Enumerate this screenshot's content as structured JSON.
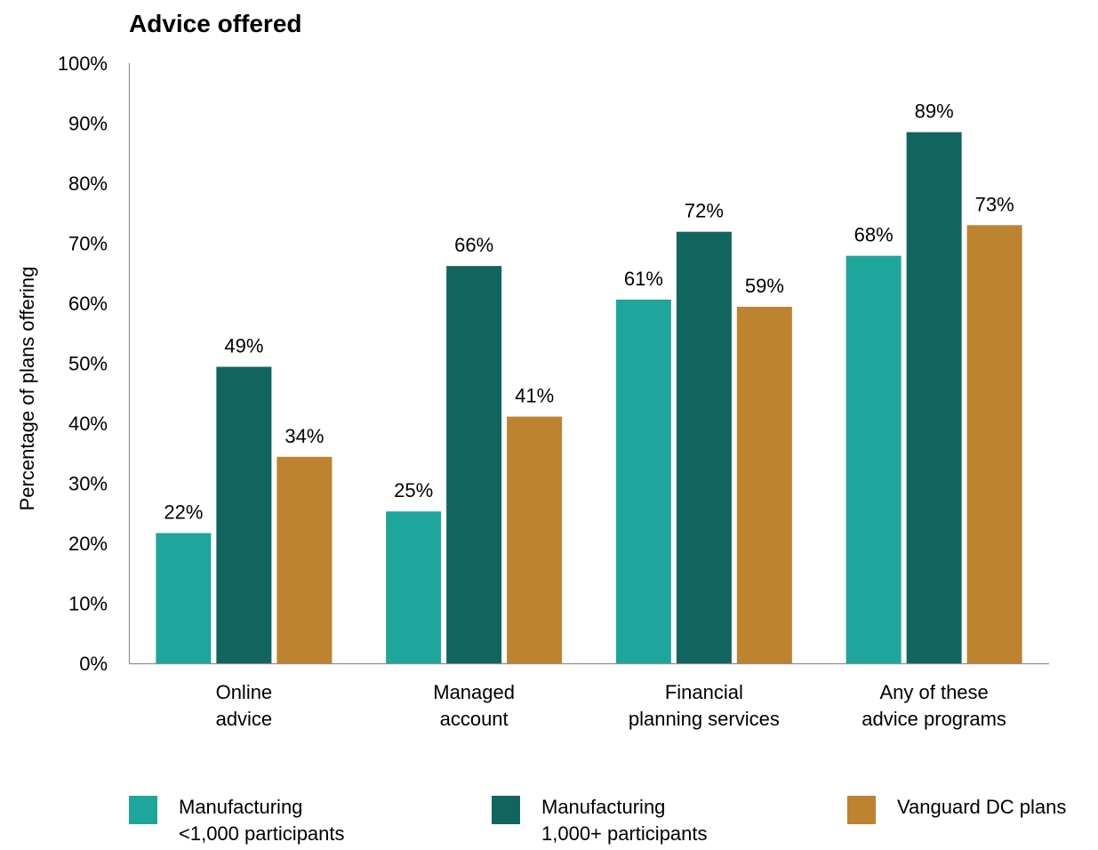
{
  "chart_data": {
    "type": "bar",
    "title": "Advice offered",
    "ylabel": "Percentage of plans offering",
    "xlabel": "",
    "ylim": [
      0,
      100
    ],
    "yticks": [
      "0%",
      "10%",
      "20%",
      "30%",
      "40%",
      "50%",
      "60%",
      "70%",
      "80%",
      "90%",
      "100%"
    ],
    "categories": [
      [
        "Online",
        "advice"
      ],
      [
        "Managed",
        "account"
      ],
      [
        "Financial",
        "planning services"
      ],
      [
        "Any of these",
        "advice programs"
      ]
    ],
    "series": [
      {
        "name": [
          "Manufacturing",
          "<1,000 participants"
        ],
        "color": "#1fa69c",
        "values": [
          21.7,
          25.3,
          60.6,
          67.9
        ],
        "labels": [
          "22%",
          "25%",
          "61%",
          "68%"
        ]
      },
      {
        "name": [
          "Manufacturing",
          "1,000+ participants"
        ],
        "color": "#12655f",
        "values": [
          49.4,
          66.2,
          71.9,
          88.5
        ],
        "labels": [
          "49%",
          "66%",
          "72%",
          "89%"
        ]
      },
      {
        "name": [
          "Vanguard DC plans"
        ],
        "color": "#bd832e",
        "values": [
          34.4,
          41.1,
          59.4,
          73.0
        ],
        "labels": [
          "34%",
          "41%",
          "59%",
          "73%"
        ]
      }
    ],
    "legend_position": "bottom",
    "grid": false
  }
}
